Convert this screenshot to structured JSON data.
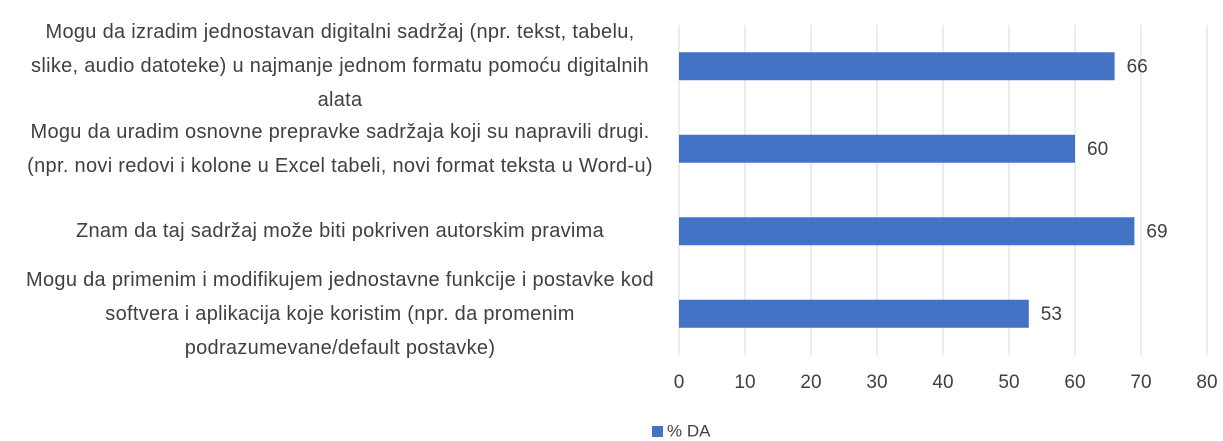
{
  "chart_data": {
    "type": "bar",
    "orientation": "horizontal",
    "categories": [
      "Mogu da izradim jednostavan digitalni sadržaj (npr. tekst, tabelu, slike, audio datoteke) u najmanje jednom formatu pomoću digitalnih alata",
      "Mogu da uradim osnovne prepravke sadržaja koji su napravili drugi. (npr. novi redovi i kolone u Excel tabeli, novi format teksta u Word-u)",
      "Znam da taj sadržaj može biti pokriven autorskim pravima",
      "Mogu da primenim i modifikujem jednostavne funkcije i postavke kod softvera i aplikacija koje koristim (npr. da promenim podrazumevane/default postavke)"
    ],
    "series": [
      {
        "name": "% DA",
        "color": "#4472c4",
        "values": [
          66,
          60,
          69,
          53
        ]
      }
    ],
    "xlim": [
      0,
      80
    ],
    "xticks": [
      0,
      10,
      20,
      30,
      40,
      50,
      60,
      70,
      80
    ],
    "grid": true,
    "legend": "bottom"
  }
}
